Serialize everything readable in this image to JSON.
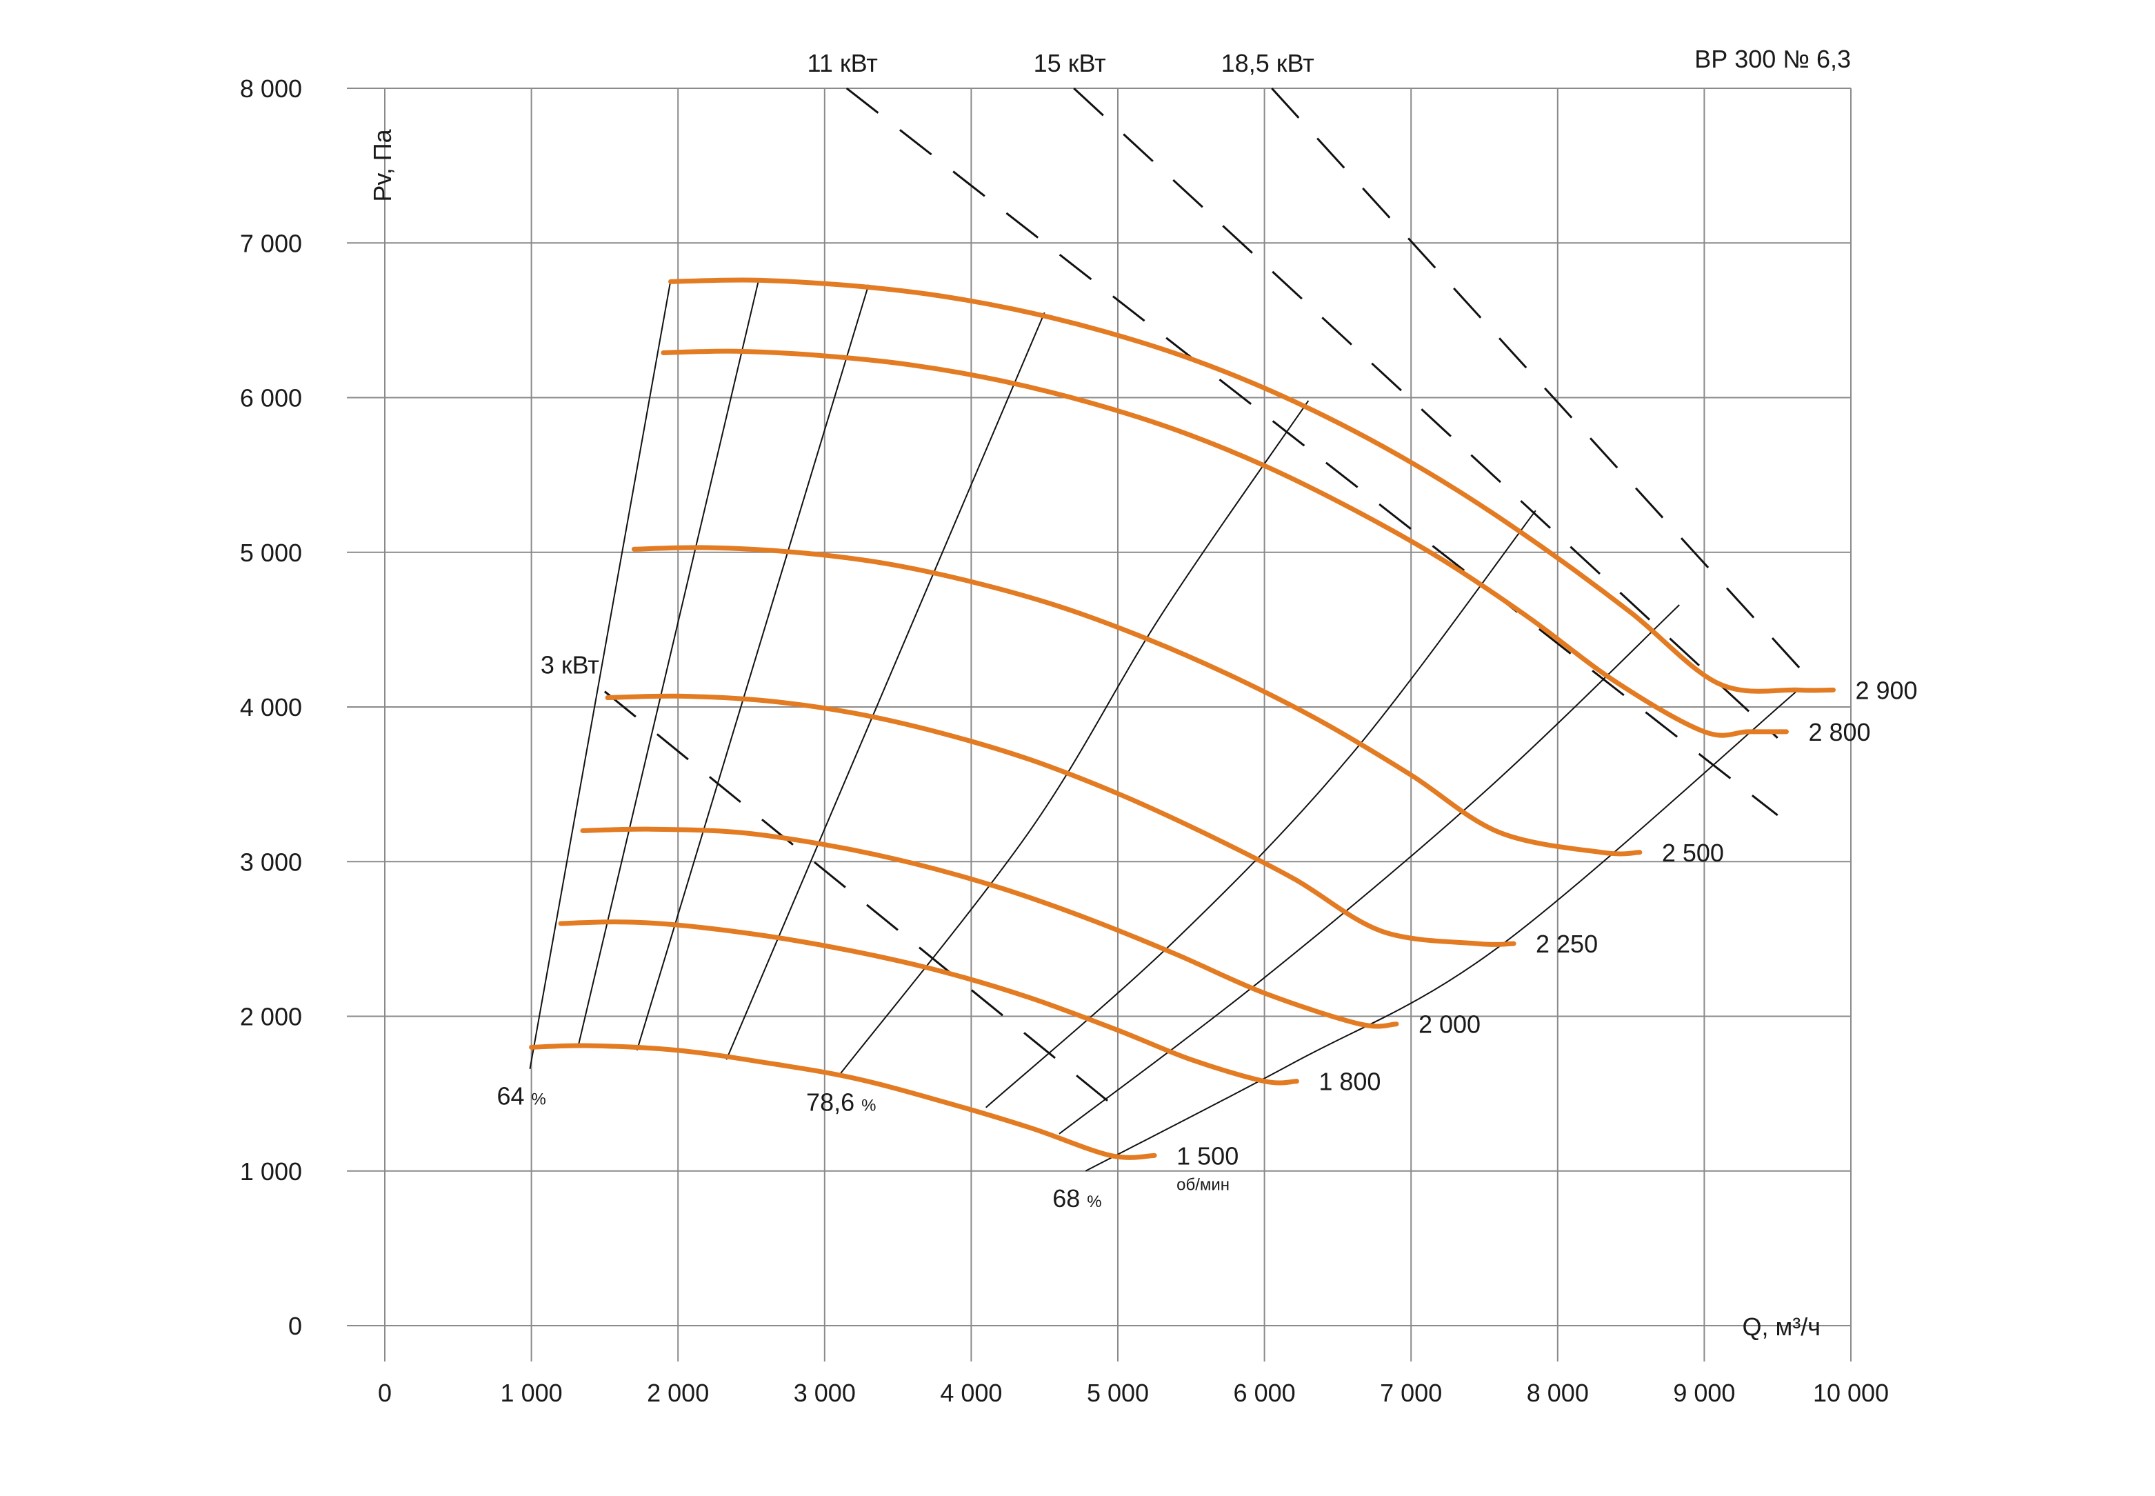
{
  "chart_data": {
    "type": "line",
    "title": "ВР 300 № 6,3",
    "xlabel": "Q, м³/ч",
    "ylabel": "Pv, Па",
    "xlim": [
      0,
      10000
    ],
    "ylim": [
      0,
      8000
    ],
    "grid": true,
    "x_ticks": [
      0,
      1000,
      2000,
      3000,
      4000,
      5000,
      6000,
      7000,
      8000,
      9000,
      10000
    ],
    "x_tick_labels": [
      "0",
      "1 000",
      "2 000",
      "3 000",
      "4 000",
      "5 000",
      "6 000",
      "7 000",
      "8 000",
      "9 000",
      "10 000"
    ],
    "y_ticks": [
      0,
      1000,
      2000,
      3000,
      4000,
      5000,
      6000,
      7000,
      8000
    ],
    "y_tick_labels": [
      "0",
      "1 000",
      "2 000",
      "3 000",
      "4 000",
      "5 000",
      "6 000",
      "7 000",
      "8 000"
    ],
    "series_color": "#e37b22",
    "series": [
      {
        "name": "1 500",
        "unit": "об/мин",
        "x": [
          1000,
          1400,
          2000,
          2600,
          3200,
          3800,
          4400,
          4950,
          5250
        ],
        "y": [
          1800,
          1810,
          1780,
          1700,
          1600,
          1450,
          1280,
          1100,
          1100
        ]
      },
      {
        "name": "1 800",
        "x": [
          1200,
          1600,
          2000,
          2600,
          3200,
          3800,
          4400,
          5000,
          5500,
          6000,
          6220
        ],
        "y": [
          2600,
          2610,
          2590,
          2520,
          2420,
          2290,
          2120,
          1910,
          1720,
          1580,
          1580
        ]
      },
      {
        "name": "2 000",
        "x": [
          1350,
          1800,
          2400,
          3000,
          3600,
          4200,
          4800,
          5400,
          6000,
          6650,
          6900
        ],
        "y": [
          3200,
          3210,
          3190,
          3110,
          2990,
          2830,
          2630,
          2400,
          2150,
          1950,
          1950
        ]
      },
      {
        "name": "2 250",
        "x": [
          1520,
          2000,
          2600,
          3200,
          3800,
          4400,
          5000,
          5600,
          6200,
          6800,
          7450,
          7700
        ],
        "y": [
          4060,
          4070,
          4040,
          3960,
          3830,
          3660,
          3440,
          3180,
          2890,
          2550,
          2470,
          2470
        ]
      },
      {
        "name": "2 500",
        "x": [
          1700,
          2200,
          2800,
          3400,
          4000,
          4600,
          5200,
          5800,
          6400,
          7000,
          7600,
          8300,
          8560
        ],
        "y": [
          5020,
          5030,
          5000,
          4930,
          4810,
          4650,
          4440,
          4190,
          3900,
          3560,
          3190,
          3060,
          3060
        ]
      },
      {
        "name": "2 800",
        "x": [
          1900,
          2400,
          3000,
          3600,
          4200,
          4800,
          5400,
          6000,
          6600,
          7200,
          7800,
          8400,
          9000,
          9300,
          9560
        ],
        "y": [
          6290,
          6300,
          6270,
          6210,
          6110,
          5970,
          5790,
          5560,
          5280,
          4960,
          4580,
          4160,
          3840,
          3840,
          3840
        ]
      },
      {
        "name": "2 900",
        "x": [
          1950,
          2500,
          3100,
          3700,
          4300,
          4900,
          5500,
          6100,
          6700,
          7300,
          7900,
          8500,
          9100,
          9640,
          9880
        ],
        "y": [
          6750,
          6760,
          6730,
          6670,
          6570,
          6430,
          6250,
          6020,
          5740,
          5410,
          5030,
          4610,
          4150,
          4110,
          4110
        ]
      }
    ],
    "efficiency_lines": [
      {
        "label": "64",
        "unit": "%",
        "x": [
          990,
          1950
        ],
        "y": [
          1660,
          6760
        ]
      },
      {
        "x": [
          1320,
          2550
        ],
        "y": [
          1810,
          6760
        ]
      },
      {
        "x": [
          1720,
          3300
        ],
        "y": [
          1780,
          6730
        ]
      },
      {
        "x": [
          2330,
          4500
        ],
        "y": [
          1720,
          6550
        ]
      },
      {
        "label": "78,6",
        "unit": "%",
        "x": [
          3100,
          4400,
          5300,
          6300
        ],
        "y": [
          1620,
          3200,
          4600,
          5980
        ]
      },
      {
        "x": [
          4100,
          5400,
          6600,
          7850
        ],
        "y": [
          1410,
          2500,
          3700,
          5270
        ]
      },
      {
        "x": [
          4600,
          6000,
          7500,
          8830
        ],
        "y": [
          1240,
          2250,
          3450,
          4660
        ]
      },
      {
        "label": "68",
        "unit": "%",
        "x": [
          4780,
          6200,
          7600,
          9640
        ],
        "y": [
          1000,
          1700,
          2450,
          4110
        ]
      }
    ],
    "power_lines": [
      {
        "label": "3 кВт",
        "x": [
          1500,
          5000
        ],
        "y": [
          4100,
          1400
        ]
      },
      {
        "label": "11 кВт",
        "x": [
          3150,
          9500
        ],
        "y": [
          8000,
          3300
        ]
      },
      {
        "label": "15 кВт",
        "x": [
          4700,
          9500
        ],
        "y": [
          8000,
          3800
        ]
      },
      {
        "label": "18,5 кВт",
        "x": [
          6050,
          9700
        ],
        "y": [
          8000,
          4200
        ]
      }
    ]
  }
}
